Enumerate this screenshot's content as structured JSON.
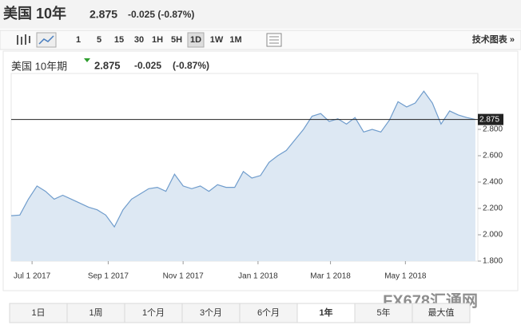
{
  "header": {
    "name": "美国 10年",
    "price": "2.875",
    "change": "-0.025 (-0.87%)"
  },
  "toolbar": {
    "intervals": [
      "1",
      "5",
      "15",
      "30",
      "1H",
      "5H",
      "1D",
      "1W",
      "1M"
    ],
    "active": "1D",
    "link": "技术图表 »"
  },
  "ranges": {
    "buttons": [
      "1日",
      "1周",
      "1个月",
      "3个月",
      "6个月",
      "1年",
      "5年",
      "最大值"
    ],
    "active": "1年"
  },
  "watermark": "FX678汇通网",
  "chart_data": {
    "type": "area",
    "title": "美国 10年期",
    "last_price": "2.875",
    "change": "-0.025",
    "change_pct": "(-0.87%)",
    "color": "#6f9ccc",
    "fill": "#dde8f3",
    "change_color": "#2e9e2e",
    "x": [
      "2017-06-14",
      "2017-06-21",
      "2017-06-28",
      "2017-07-05",
      "2017-07-12",
      "2017-07-19",
      "2017-07-26",
      "2017-08-02",
      "2017-08-09",
      "2017-08-16",
      "2017-08-23",
      "2017-08-30",
      "2017-09-06",
      "2017-09-13",
      "2017-09-20",
      "2017-09-27",
      "2017-10-04",
      "2017-10-11",
      "2017-10-18",
      "2017-10-25",
      "2017-11-01",
      "2017-11-08",
      "2017-11-15",
      "2017-11-22",
      "2017-11-29",
      "2017-12-06",
      "2017-12-13",
      "2017-12-20",
      "2017-12-27",
      "2018-01-03",
      "2018-01-10",
      "2018-01-17",
      "2018-01-24",
      "2018-01-31",
      "2018-02-07",
      "2018-02-14",
      "2018-02-21",
      "2018-02-28",
      "2018-03-07",
      "2018-03-14",
      "2018-03-21",
      "2018-03-28",
      "2018-04-04",
      "2018-04-11",
      "2018-04-18",
      "2018-04-25",
      "2018-05-02",
      "2018-05-09",
      "2018-05-16",
      "2018-05-23",
      "2018-05-30",
      "2018-06-06",
      "2018-06-13",
      "2018-06-20",
      "2018-06-27"
    ],
    "values": [
      2.145,
      2.15,
      2.27,
      2.37,
      2.33,
      2.27,
      2.3,
      2.27,
      2.24,
      2.21,
      2.19,
      2.15,
      2.06,
      2.19,
      2.27,
      2.31,
      2.35,
      2.36,
      2.33,
      2.46,
      2.37,
      2.35,
      2.37,
      2.33,
      2.38,
      2.36,
      2.36,
      2.48,
      2.43,
      2.45,
      2.55,
      2.6,
      2.64,
      2.72,
      2.8,
      2.9,
      2.92,
      2.86,
      2.88,
      2.84,
      2.89,
      2.78,
      2.8,
      2.78,
      2.87,
      3.01,
      2.97,
      3.0,
      3.09,
      3.0,
      2.84,
      2.94,
      2.91,
      2.89,
      2.875
    ],
    "last_value": 2.875,
    "xlim": [
      "2017-06-14",
      "2018-06-29"
    ],
    "xticks": [
      {
        "value": "2017-07-01",
        "label": "Jul 1 2017"
      },
      {
        "value": "2017-09-01",
        "label": "Sep 1 2017"
      },
      {
        "value": "2017-11-01",
        "label": "Nov 1 2017"
      },
      {
        "value": "2018-01-01",
        "label": "Jan 1 2018"
      },
      {
        "value": "2018-03-01",
        "label": "Mar 1 2018"
      },
      {
        "value": "2018-05-01",
        "label": "May 1 2018"
      }
    ],
    "ylim": [
      1.8,
      3.2
    ],
    "yticks": [
      {
        "value": 1.8,
        "label": "1.800"
      },
      {
        "value": 2.0,
        "label": "2.000"
      },
      {
        "value": 2.2,
        "label": "2.200"
      },
      {
        "value": 2.4,
        "label": "2.400"
      },
      {
        "value": 2.6,
        "label": "2.600"
      },
      {
        "value": 2.8,
        "label": "2.800"
      }
    ]
  }
}
